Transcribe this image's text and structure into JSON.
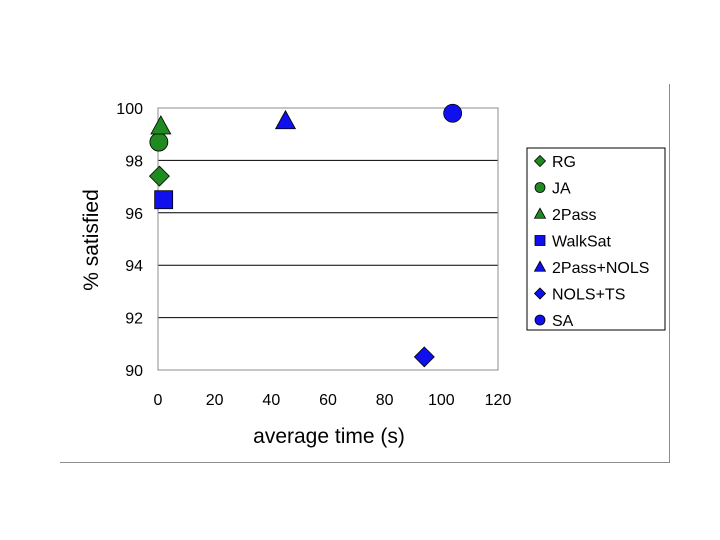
{
  "chart_data": {
    "type": "scatter",
    "title": "",
    "xlabel": "average time (s)",
    "ylabel": "% satisfied",
    "xlim": [
      0,
      120
    ],
    "ylim": [
      90,
      100
    ],
    "xticks": [
      0,
      20,
      40,
      60,
      80,
      100,
      120
    ],
    "yticks": [
      90,
      92,
      94,
      96,
      98,
      100
    ],
    "grid": "horizontal",
    "legend_position": "right",
    "series": [
      {
        "name": "RG",
        "marker": "diamond",
        "color": "#1f8a1f",
        "points": [
          {
            "x": 0.5,
            "y": 97.4
          }
        ]
      },
      {
        "name": "JA",
        "marker": "circle",
        "color": "#1f8a1f",
        "points": [
          {
            "x": 0.3,
            "y": 98.7
          }
        ]
      },
      {
        "name": "2Pass",
        "marker": "triangle",
        "color": "#1f8a1f",
        "points": [
          {
            "x": 1.0,
            "y": 99.3
          }
        ]
      },
      {
        "name": "WalkSat",
        "marker": "square",
        "color": "#1010ee",
        "points": [
          {
            "x": 2.0,
            "y": 96.5
          }
        ]
      },
      {
        "name": "2Pass+NOLS",
        "marker": "triangle",
        "color": "#1010ee",
        "points": [
          {
            "x": 45.0,
            "y": 99.5
          }
        ]
      },
      {
        "name": "NOLS+TS",
        "marker": "diamond",
        "color": "#1010ee",
        "points": [
          {
            "x": 94.0,
            "y": 90.5
          }
        ]
      },
      {
        "name": "SA",
        "marker": "circle",
        "color": "#1010ee",
        "points": [
          {
            "x": 104.0,
            "y": 99.8
          }
        ]
      }
    ]
  }
}
